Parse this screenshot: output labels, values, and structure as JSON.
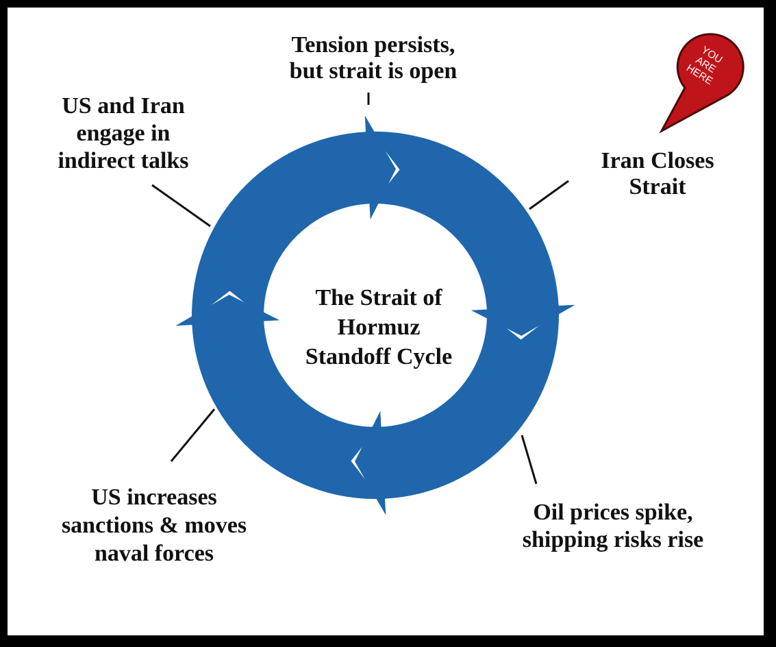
{
  "center": {
    "lines": [
      "The Strait of",
      "Hormuz",
      "Standoff Cycle"
    ]
  },
  "nodes": [
    {
      "lines": [
        "Tension persists,",
        "but strait is open"
      ]
    },
    {
      "lines": [
        "Iran Closes",
        "Strait"
      ]
    },
    {
      "lines": [
        "Oil prices spike,",
        "shipping risks rise"
      ]
    },
    {
      "lines": [
        "US increases",
        "sanctions & moves",
        "naval forces"
      ]
    },
    {
      "lines": [
        "US and Iran",
        "engage in",
        "indirect talks"
      ]
    }
  ],
  "pin": {
    "lines": [
      "YOU",
      "ARE",
      "HERE"
    ]
  }
}
